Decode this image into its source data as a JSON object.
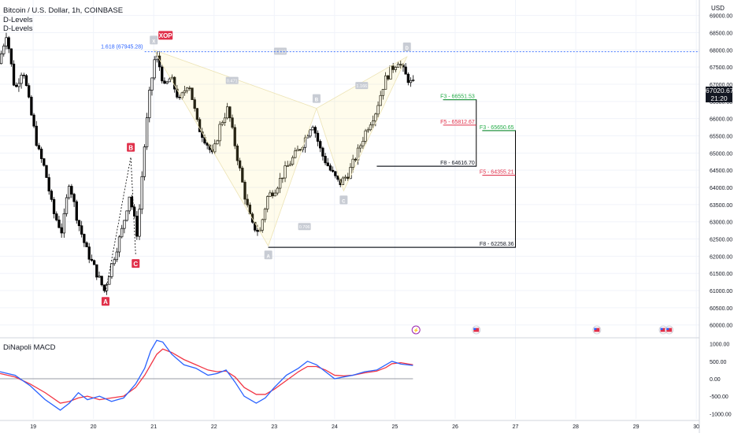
{
  "header": {
    "symbol_title": "Bitcoin / U.S. Dollar, 1h, COINBASE",
    "indicator_1": "D-Levels",
    "indicator_2": "D-Levels"
  },
  "price_axis": {
    "currency": "USD",
    "last_price": "67020.67",
    "countdown": "21:20"
  },
  "macd_panel": {
    "title": "DiNapoli MACD"
  },
  "chart_data": {
    "type": "candlestick",
    "x_ticks": [
      "19",
      "20",
      "21",
      "22",
      "23",
      "24",
      "25",
      "26",
      "27",
      "28",
      "29",
      "30"
    ],
    "x_range": [
      18.45,
      30.05
    ],
    "y_ticks": [
      60000,
      60500,
      61000,
      61500,
      62000,
      62500,
      63000,
      63500,
      64000,
      64500,
      65000,
      65500,
      66000,
      66500,
      67000,
      67500,
      68000,
      68500,
      69000
    ],
    "y_range": [
      59650,
      69450
    ],
    "price_path": [
      [
        18.45,
        67600
      ],
      [
        18.58,
        68500
      ],
      [
        18.72,
        66800
      ],
      [
        18.85,
        67500
      ],
      [
        18.98,
        66200
      ],
      [
        19.1,
        65100
      ],
      [
        19.22,
        64500
      ],
      [
        19.35,
        63300
      ],
      [
        19.5,
        62700
      ],
      [
        19.62,
        64200
      ],
      [
        19.75,
        63100
      ],
      [
        19.9,
        62200
      ],
      [
        20.05,
        61600
      ],
      [
        20.2,
        61000
      ],
      [
        20.35,
        61900
      ],
      [
        20.5,
        62800
      ],
      [
        20.62,
        63800
      ],
      [
        20.75,
        62600
      ],
      [
        20.85,
        64900
      ],
      [
        20.95,
        66700
      ],
      [
        21.05,
        67900
      ],
      [
        21.12,
        67500
      ],
      [
        21.2,
        66900
      ],
      [
        21.3,
        67200
      ],
      [
        21.45,
        66500
      ],
      [
        21.6,
        67100
      ],
      [
        21.75,
        65800
      ],
      [
        21.9,
        65300
      ],
      [
        22.0,
        64900
      ],
      [
        22.12,
        65800
      ],
      [
        22.25,
        66300
      ],
      [
        22.35,
        65400
      ],
      [
        22.45,
        64500
      ],
      [
        22.55,
        63600
      ],
      [
        22.65,
        62900
      ],
      [
        22.78,
        62700
      ],
      [
        22.9,
        63700
      ],
      [
        23.05,
        64000
      ],
      [
        23.2,
        64500
      ],
      [
        23.35,
        64900
      ],
      [
        23.5,
        65300
      ],
      [
        23.65,
        65900
      ],
      [
        23.8,
        65000
      ],
      [
        23.95,
        64500
      ],
      [
        24.1,
        64100
      ],
      [
        24.25,
        64400
      ],
      [
        24.4,
        65000
      ],
      [
        24.55,
        65700
      ],
      [
        24.7,
        66200
      ],
      [
        24.85,
        67100
      ],
      [
        24.95,
        67400
      ],
      [
        25.08,
        67700
      ],
      [
        25.18,
        67300
      ],
      [
        25.3,
        67000
      ]
    ],
    "harmonic_pattern": {
      "label": "XOP",
      "points": [
        {
          "label": "A",
          "x": 20.2,
          "y": 60950
        },
        {
          "label": "B",
          "x": 20.62,
          "y": 64880
        },
        {
          "label": "C",
          "x": 20.7,
          "y": 62050
        },
        {
          "label": "X",
          "x": 21.0,
          "y": 68000
        },
        {
          "label": "A",
          "x": 22.9,
          "y": 62300
        },
        {
          "label": "B",
          "x": 23.7,
          "y": 66300
        },
        {
          "label": "C",
          "x": 24.15,
          "y": 63900
        },
        {
          "label": "D",
          "x": 25.2,
          "y": 67800
        }
      ],
      "ratios": [
        {
          "text": "0.471",
          "x": 22.3,
          "y": 67100
        },
        {
          "text": "0.706",
          "x": 23.5,
          "y": 62850
        },
        {
          "text": "1.166",
          "x": 24.45,
          "y": 66950
        },
        {
          "text": "0.618",
          "x": 23.1,
          "y": 67950
        }
      ]
    },
    "extension_level": {
      "label": "1.618 (67945.28)",
      "value": 67945.28
    },
    "dinapoli_levels": [
      {
        "label": "F3 - 66551.53",
        "value": 66551.53,
        "color": "#22ab46",
        "x_start": 25.8,
        "x_end": 26.35
      },
      {
        "label": "F5 - 65812.67",
        "value": 65812.67,
        "color": "#e0304a",
        "x_start": 25.8,
        "x_end": 26.35
      },
      {
        "label": "F8 - 64616.70",
        "value": 64616.7,
        "color": "#131722",
        "x_start": 24.7,
        "x_end": 26.35
      },
      {
        "label": "F3 - 65650.65",
        "value": 65650.65,
        "color": "#22ab46",
        "x_start": 26.45,
        "x_end": 27.0
      },
      {
        "label": "F5 - 64355.21",
        "value": 64355.21,
        "color": "#e0304a",
        "x_start": 26.45,
        "x_end": 27.0
      },
      {
        "label": "F8 - 62258.36",
        "value": 62258.36,
        "color": "#131722",
        "x_start": 22.9,
        "x_end": 27.0
      }
    ],
    "macd": {
      "y_ticks": [
        -1000,
        -500,
        0,
        500,
        1000
      ],
      "y_range": [
        -1150,
        1150
      ],
      "macd_series": [
        [
          18.45,
          200
        ],
        [
          18.7,
          100
        ],
        [
          18.95,
          -200
        ],
        [
          19.2,
          -600
        ],
        [
          19.45,
          -900
        ],
        [
          19.6,
          -700
        ],
        [
          19.75,
          -400
        ],
        [
          19.9,
          -600
        ],
        [
          20.1,
          -500
        ],
        [
          20.3,
          -650
        ],
        [
          20.5,
          -550
        ],
        [
          20.7,
          -150
        ],
        [
          20.85,
          300
        ],
        [
          20.95,
          800
        ],
        [
          21.05,
          1100
        ],
        [
          21.15,
          1050
        ],
        [
          21.3,
          700
        ],
        [
          21.5,
          400
        ],
        [
          21.7,
          300
        ],
        [
          21.9,
          100
        ],
        [
          22.05,
          150
        ],
        [
          22.2,
          250
        ],
        [
          22.35,
          -100
        ],
        [
          22.5,
          -500
        ],
        [
          22.7,
          -700
        ],
        [
          22.85,
          -550
        ],
        [
          23.0,
          -250
        ],
        [
          23.2,
          100
        ],
        [
          23.4,
          300
        ],
        [
          23.55,
          500
        ],
        [
          23.7,
          400
        ],
        [
          23.85,
          200
        ],
        [
          24.0,
          0
        ],
        [
          24.15,
          50
        ],
        [
          24.3,
          100
        ],
        [
          24.5,
          200
        ],
        [
          24.7,
          250
        ],
        [
          24.85,
          400
        ],
        [
          24.95,
          500
        ],
        [
          25.1,
          420
        ],
        [
          25.3,
          380
        ]
      ],
      "signal_series": [
        [
          18.45,
          150
        ],
        [
          18.7,
          50
        ],
        [
          18.95,
          -150
        ],
        [
          19.2,
          -400
        ],
        [
          19.45,
          -700
        ],
        [
          19.6,
          -650
        ],
        [
          19.75,
          -550
        ],
        [
          19.9,
          -500
        ],
        [
          20.1,
          -600
        ],
        [
          20.3,
          -550
        ],
        [
          20.5,
          -500
        ],
        [
          20.7,
          -250
        ],
        [
          20.85,
          100
        ],
        [
          20.95,
          400
        ],
        [
          21.05,
          700
        ],
        [
          21.15,
          850
        ],
        [
          21.3,
          750
        ],
        [
          21.5,
          550
        ],
        [
          21.7,
          400
        ],
        [
          21.9,
          250
        ],
        [
          22.05,
          200
        ],
        [
          22.2,
          220
        ],
        [
          22.35,
          50
        ],
        [
          22.5,
          -250
        ],
        [
          22.7,
          -450
        ],
        [
          22.85,
          -450
        ],
        [
          23.0,
          -300
        ],
        [
          23.2,
          -50
        ],
        [
          23.4,
          200
        ],
        [
          23.55,
          350
        ],
        [
          23.7,
          350
        ],
        [
          23.85,
          250
        ],
        [
          24.0,
          100
        ],
        [
          24.15,
          80
        ],
        [
          24.3,
          100
        ],
        [
          24.5,
          170
        ],
        [
          24.7,
          220
        ],
        [
          24.85,
          320
        ],
        [
          24.95,
          430
        ],
        [
          25.1,
          460
        ],
        [
          25.3,
          400
        ]
      ]
    },
    "events": [
      {
        "type": "earnings",
        "x": 25.35
      },
      {
        "type": "economic",
        "x": 26.35
      },
      {
        "type": "economic",
        "x": 28.35
      },
      {
        "type": "economic",
        "x": 29.45
      },
      {
        "type": "economic",
        "x": 29.55
      }
    ]
  }
}
